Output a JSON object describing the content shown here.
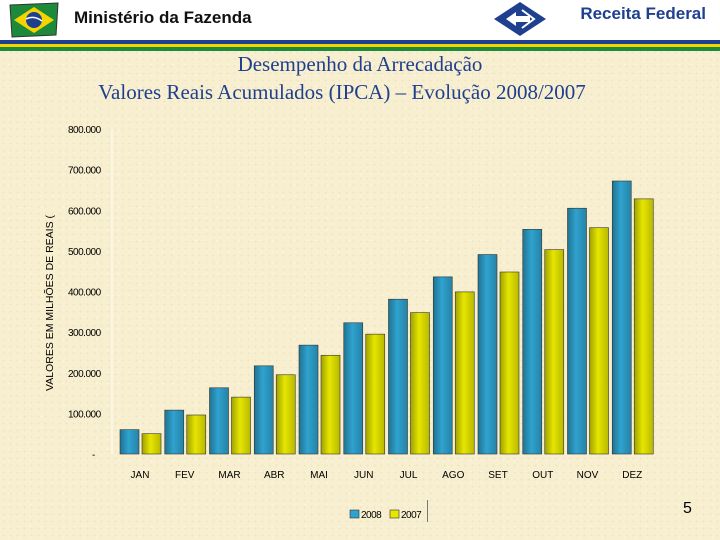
{
  "header": {
    "ministry": "Ministério da Fazenda",
    "agency": "Receita Federal",
    "logo_left_icon": "brazil-flag-seal-icon",
    "logo_right_icon": "receita-federal-logo-icon",
    "colors": {
      "blue": "#1f3f8f",
      "yellow": "#f5d400",
      "green": "#1c8a3a"
    }
  },
  "slide": {
    "title_line1": "Desempenho da Arrecadação",
    "title_line2": "Valores Reais Acumulados (IPCA) – Evolução 2008/2007",
    "page_number": "5"
  },
  "chart_data": {
    "type": "bar",
    "ylabel": "VALORES EM MILHÕES DE REAIS (",
    "ylim": [
      0,
      800000
    ],
    "yticks": [
      {
        "value": 0,
        "label": "-"
      },
      {
        "value": 100000,
        "label": "100.000"
      },
      {
        "value": 200000,
        "label": "200.000"
      },
      {
        "value": 300000,
        "label": "300.000"
      },
      {
        "value": 400000,
        "label": "400.000"
      },
      {
        "value": 500000,
        "label": "500.000"
      },
      {
        "value": 600000,
        "label": "600.000"
      },
      {
        "value": 700000,
        "label": "700.000"
      },
      {
        "value": 800000,
        "label": "800.000"
      }
    ],
    "categories": [
      "JAN",
      "FEV",
      "MAR",
      "ABR",
      "MAI",
      "JUN",
      "JUL",
      "AGO",
      "SET",
      "OUT",
      "NOV",
      "DEZ"
    ],
    "series": [
      {
        "name": "2008",
        "color": "#2fa3cf",
        "values": [
          60000,
          108000,
          163000,
          217000,
          268000,
          323000,
          381000,
          436000,
          491000,
          553000,
          605000,
          672000
        ]
      },
      {
        "name": "2007",
        "color": "#e6e600",
        "values": [
          50000,
          96000,
          140000,
          195000,
          243000,
          295000,
          348000,
          399000,
          448000,
          503000,
          557000,
          628000
        ]
      }
    ],
    "legend": "bottom",
    "grid": false
  }
}
